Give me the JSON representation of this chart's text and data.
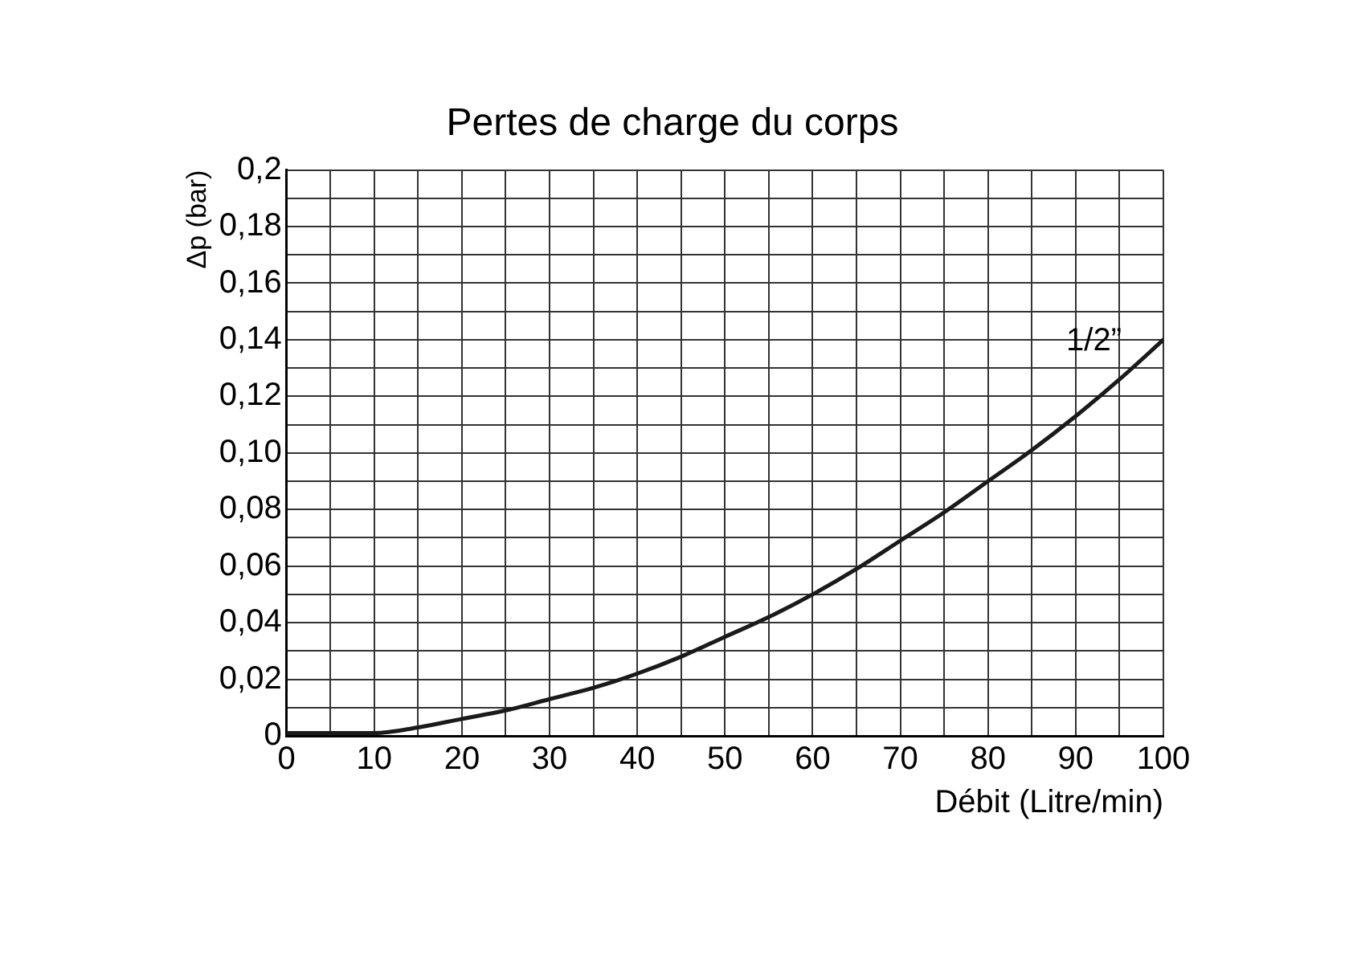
{
  "chart_data": {
    "type": "line",
    "title": "Pertes de charge du corps",
    "xlabel": "Débit (Litre/min)",
    "ylabel": "Δp (bar)",
    "x": [
      0,
      5,
      10,
      15,
      20,
      25,
      30,
      35,
      40,
      45,
      50,
      55,
      60,
      65,
      70,
      75,
      80,
      85,
      90,
      95,
      100
    ],
    "series": [
      {
        "name": "1/2”",
        "color": "#1a1a1a",
        "values": [
          0.001,
          0.001,
          0.001,
          0.003,
          0.006,
          0.009,
          0.013,
          0.017,
          0.022,
          0.028,
          0.035,
          0.042,
          0.05,
          0.059,
          0.069,
          0.079,
          0.09,
          0.101,
          0.113,
          0.126,
          0.14
        ]
      }
    ],
    "xlim": [
      0,
      100
    ],
    "xticks": [
      0,
      {
        "value": 5,
        "label": null
      },
      10,
      {
        "value": 15,
        "label": null
      },
      20,
      {
        "value": 25,
        "label": null
      },
      30,
      {
        "value": 35,
        "label": null
      },
      40,
      {
        "value": 45,
        "label": null
      },
      50,
      {
        "value": 55,
        "label": null
      },
      60,
      {
        "value": 65,
        "label": null
      },
      70,
      {
        "value": 75,
        "label": null
      },
      80,
      {
        "value": 85,
        "label": null
      },
      90,
      {
        "value": 95,
        "label": null
      },
      100
    ],
    "ylim": [
      0,
      0.2
    ],
    "yticks": [
      0,
      {
        "value": 0.01,
        "label": null
      },
      {
        "value": 0.02,
        "label": "0,02"
      },
      {
        "value": 0.03,
        "label": null
      },
      {
        "value": 0.04,
        "label": "0,04"
      },
      {
        "value": 0.05,
        "label": null
      },
      {
        "value": 0.06,
        "label": "0,06"
      },
      {
        "value": 0.07,
        "label": null
      },
      {
        "value": 0.08,
        "label": "0,08"
      },
      {
        "value": 0.09,
        "label": null
      },
      {
        "value": 0.1,
        "label": "0,10"
      },
      {
        "value": 0.11,
        "label": null
      },
      {
        "value": 0.12,
        "label": "0,12"
      },
      {
        "value": 0.13,
        "label": null
      },
      {
        "value": 0.14,
        "label": "0,14"
      },
      {
        "value": 0.15,
        "label": null
      },
      {
        "value": 0.16,
        "label": "0,16"
      },
      {
        "value": 0.17,
        "label": null
      },
      {
        "value": 0.18,
        "label": "0,18"
      },
      {
        "value": 0.19,
        "label": null
      },
      {
        "value": 0.2,
        "label": "0,2"
      }
    ],
    "grid": true,
    "legend": false,
    "marker": "none",
    "line_style": "solid"
  }
}
